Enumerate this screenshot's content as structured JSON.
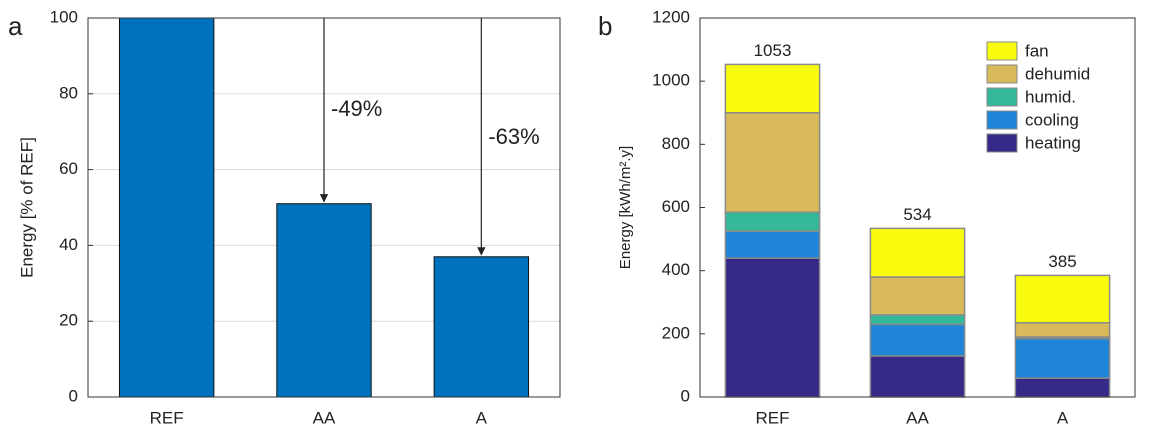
{
  "chart_data": [
    {
      "type": "bar",
      "panel": "a",
      "ylabel": "Energy [% of REF]",
      "categories": [
        "REF",
        "AA",
        "A"
      ],
      "values": [
        100,
        51,
        37
      ],
      "color": "#0072bd",
      "ylim": [
        0,
        100
      ],
      "yticks": [
        0,
        20,
        40,
        60,
        80,
        100
      ],
      "grid": true,
      "annotations": [
        "-49%",
        "-63%"
      ]
    },
    {
      "type": "stacked_bar",
      "panel": "b",
      "ylabel": "Energy [kWh/m².y]",
      "categories": [
        "REF",
        "AA",
        "A"
      ],
      "series": [
        {
          "name": "heating",
          "color": "#352a87",
          "values": [
            440,
            130,
            60
          ]
        },
        {
          "name": "cooling",
          "color": "#1f85d8",
          "values": [
            85,
            100,
            125
          ]
        },
        {
          "name": "humid.",
          "color": "#35b79a",
          "values": [
            60,
            30,
            5
          ]
        },
        {
          "name": "dehumid",
          "color": "#d8ba5a",
          "values": [
            315,
            120,
            45
          ]
        },
        {
          "name": "fan",
          "color": "#f9fb0e",
          "values": [
            153,
            154,
            150
          ]
        }
      ],
      "totals": [
        1053,
        534,
        385
      ],
      "ylim": [
        0,
        1200
      ],
      "yticks": [
        0,
        200,
        400,
        600,
        800,
        1000,
        1200
      ],
      "grid": false,
      "legend": "upper right"
    }
  ]
}
